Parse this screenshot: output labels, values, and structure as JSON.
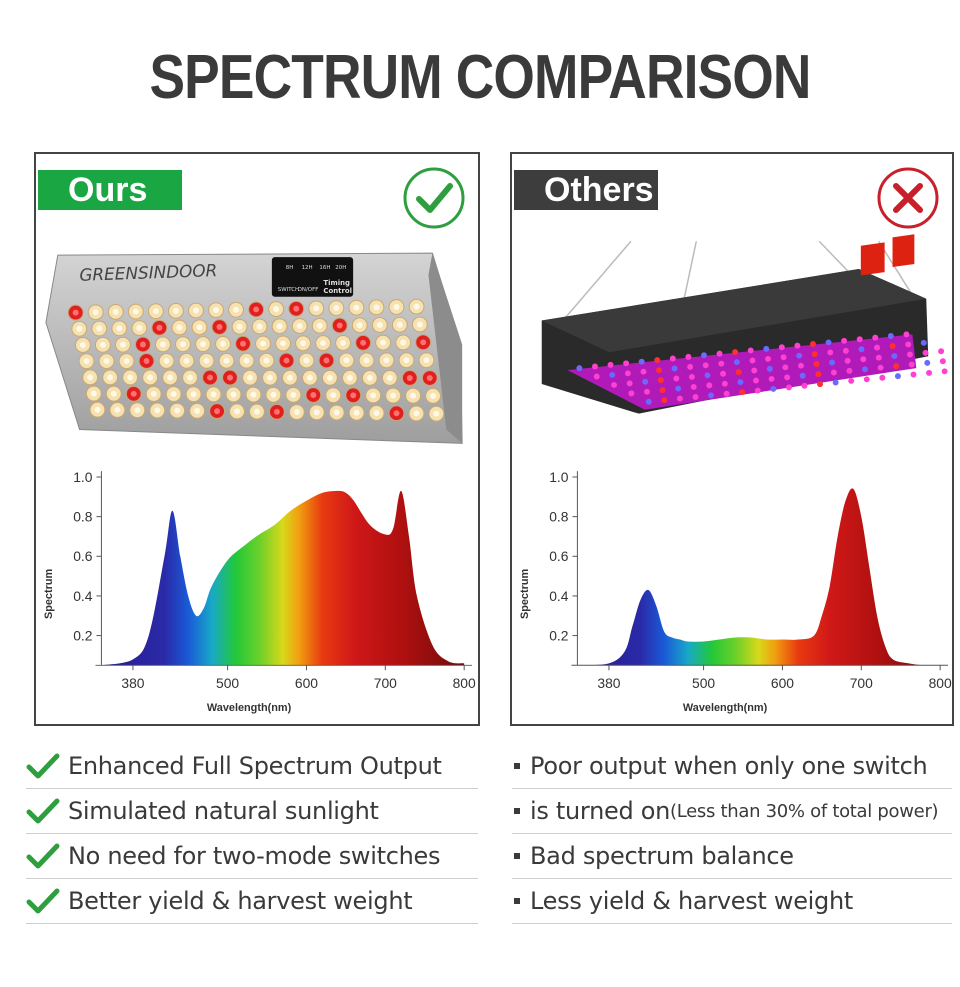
{
  "title": "SPECTRUM COMPARISON",
  "ours": {
    "tag": "Ours",
    "badge": "check-circle-icon",
    "brand": "GREENSINDOOR",
    "control_labels": [
      "8H",
      "12H",
      "16H",
      "20H"
    ],
    "control_sub": [
      "SWITCH",
      "ON/OFF"
    ],
    "control_title": [
      "Timing",
      "Control"
    ],
    "chart": {
      "ylabel": "Spectrum",
      "xlabel": "Wavelength(nm)",
      "yticks": [
        "1.0",
        "0.8",
        "0.6",
        "0.4",
        "0.2"
      ],
      "xticks": [
        "380",
        "500",
        "600",
        "700",
        "800"
      ]
    },
    "features": [
      "Enhanced Full Spectrum Output",
      "Simulated natural sunlight",
      "No need for two-mode switches",
      "Better yield & harvest weight"
    ]
  },
  "others": {
    "tag": "Others",
    "badge": "x-circle-icon",
    "chart": {
      "ylabel": "Spectrum",
      "xlabel": "Wavelength(nm)",
      "yticks": [
        "1.0",
        "0.8",
        "0.6",
        "0.4",
        "0.2"
      ],
      "xticks": [
        "380",
        "500",
        "600",
        "700",
        "800"
      ]
    },
    "features": [
      "Poor output when only one switch",
      "is turned on",
      "Bad spectrum balance",
      "Less yield & harvest weight"
    ],
    "feature_note": "(Less than 30% of total power)"
  },
  "chart_data": [
    {
      "type": "area",
      "ylabel": "Spectrum",
      "xlabel": "Wavelength(nm)",
      "xlim": [
        340,
        810
      ],
      "ylim": [
        0.05,
        1.0
      ],
      "x": [
        340,
        380,
        400,
        420,
        430,
        440,
        450,
        460,
        470,
        480,
        500,
        520,
        540,
        560,
        580,
        600,
        620,
        640,
        650,
        660,
        680,
        700,
        710,
        720,
        730,
        740,
        760,
        780,
        800
      ],
      "y": [
        0.05,
        0.08,
        0.2,
        0.6,
        0.83,
        0.6,
        0.4,
        0.3,
        0.34,
        0.45,
        0.58,
        0.65,
        0.71,
        0.76,
        0.83,
        0.88,
        0.92,
        0.93,
        0.92,
        0.88,
        0.76,
        0.71,
        0.74,
        0.93,
        0.7,
        0.4,
        0.15,
        0.07,
        0.06
      ]
    },
    {
      "type": "area",
      "ylabel": "Spectrum",
      "xlabel": "Wavelength(nm)",
      "xlim": [
        340,
        810
      ],
      "ylim": [
        0.05,
        1.0
      ],
      "x": [
        340,
        380,
        400,
        410,
        420,
        430,
        440,
        450,
        460,
        470,
        480,
        500,
        520,
        540,
        560,
        580,
        600,
        620,
        640,
        650,
        660,
        670,
        680,
        690,
        700,
        710,
        720,
        730,
        740,
        760,
        780,
        800
      ],
      "y": [
        0.05,
        0.06,
        0.12,
        0.25,
        0.38,
        0.43,
        0.35,
        0.22,
        0.19,
        0.18,
        0.17,
        0.17,
        0.18,
        0.19,
        0.19,
        0.18,
        0.18,
        0.18,
        0.2,
        0.3,
        0.45,
        0.7,
        0.88,
        0.94,
        0.8,
        0.55,
        0.3,
        0.15,
        0.08,
        0.06,
        0.05,
        0.05
      ]
    }
  ]
}
